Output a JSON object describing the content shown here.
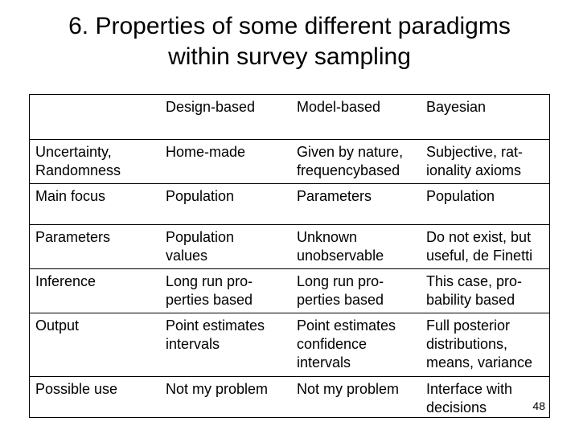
{
  "title": {
    "line1": "6. Properties of some different paradigms",
    "line2": "within survey sampling"
  },
  "table": {
    "headers": [
      "",
      "Design-based",
      "Model-based",
      "Bayesian"
    ],
    "rows": [
      {
        "label": [
          "Uncertainty,",
          "Randomness"
        ],
        "cells": [
          [
            "Home-made"
          ],
          [
            "Given by nature,",
            "frequencybased"
          ],
          [
            "Subjective, rat-",
            "ionality axioms"
          ]
        ]
      },
      {
        "label": [
          "Main focus"
        ],
        "cells": [
          [
            "Population"
          ],
          [
            "Parameters"
          ],
          [
            "Population"
          ]
        ]
      },
      {
        "label": [
          "Parameters"
        ],
        "cells": [
          [
            "Population",
            "values"
          ],
          [
            "Unknown",
            "unobservable"
          ],
          [
            "Do not exist, but",
            "useful, de Finetti"
          ]
        ]
      },
      {
        "label": [
          "Inference"
        ],
        "cells": [
          [
            "Long run pro-",
            "perties  based"
          ],
          [
            "Long run pro-",
            "perties based"
          ],
          [
            "This case, pro-",
            "bability based"
          ]
        ]
      },
      {
        "label": [
          "Output"
        ],
        "cells": [
          [
            "Point estimates",
            "intervals"
          ],
          [
            "Point estimates",
            "confidence",
            "intervals"
          ],
          [
            "Full posterior",
            "distributions,",
            "means, variance"
          ]
        ]
      },
      {
        "label": [
          "Possible use"
        ],
        "cells": [
          [
            "Not my problem"
          ],
          [
            "Not my problem"
          ],
          [
            "Interface with",
            "decisions"
          ]
        ]
      }
    ]
  },
  "page_number": "48"
}
